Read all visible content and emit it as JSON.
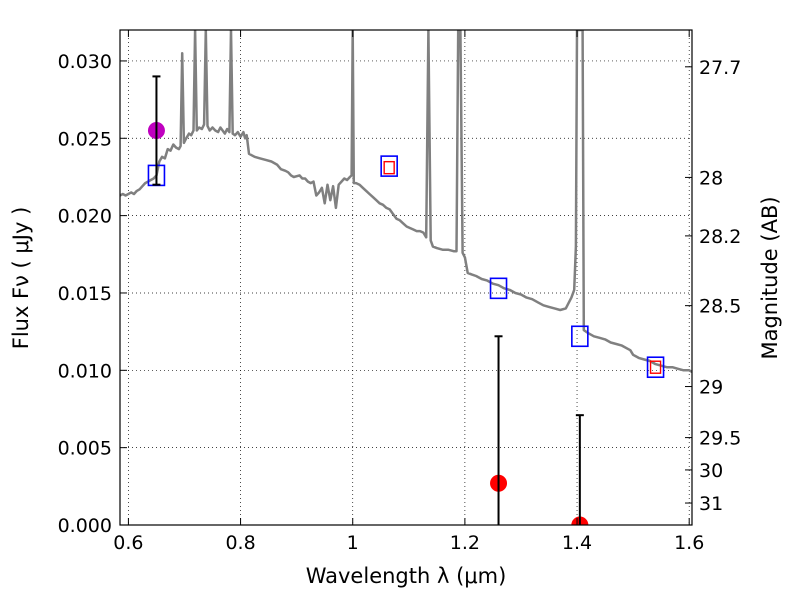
{
  "chart_data": {
    "type": "line",
    "x_unit_note": "",
    "xlabel": "Wavelength  λ (μm)",
    "ylabel": "Flux  Fν  ( μJy )",
    "y2label": "Magnitude (AB)",
    "xlim": [
      0.585,
      1.605
    ],
    "ylim": [
      0.0,
      0.032
    ],
    "x_ticks": [
      0.6,
      0.8,
      1.0,
      1.2,
      1.4,
      1.6
    ],
    "x_tick_labels": [
      "0.6",
      "0.8",
      "1",
      "1.2",
      "1.4",
      "1.6"
    ],
    "y_ticks": [
      0.0,
      0.005,
      0.01,
      0.015,
      0.02,
      0.025,
      0.03
    ],
    "y_tick_labels": [
      "0.000",
      "0.005",
      "0.010",
      "0.015",
      "0.020",
      "0.025",
      "0.030"
    ],
    "y2_ticks": [
      {
        "label": "27.7",
        "flux": 0.02962
      },
      {
        "label": "28",
        "flux": 0.02247
      },
      {
        "label": "28.2",
        "flux": 0.01869
      },
      {
        "label": "28.5",
        "flux": 0.01418
      },
      {
        "label": "29",
        "flux": 0.00895
      },
      {
        "label": "29.5",
        "flux": 0.00565
      },
      {
        "label": "30",
        "flux": 0.00356
      },
      {
        "label": "31",
        "flux": 0.00142
      }
    ],
    "grid": true,
    "series": [
      {
        "kind": "model_spectrum",
        "color": "#808080",
        "points": [
          [
            0.585,
            0.0213
          ],
          [
            0.59,
            0.0214
          ],
          [
            0.595,
            0.0213
          ],
          [
            0.6,
            0.0214
          ],
          [
            0.605,
            0.0215
          ],
          [
            0.61,
            0.0214
          ],
          [
            0.615,
            0.0216
          ],
          [
            0.62,
            0.0217
          ],
          [
            0.625,
            0.0219
          ],
          [
            0.63,
            0.0221
          ],
          [
            0.635,
            0.0222
          ],
          [
            0.64,
            0.0223
          ],
          [
            0.645,
            0.0224
          ],
          [
            0.65,
            0.0226
          ],
          [
            0.655,
            0.0235
          ],
          [
            0.66,
            0.0238
          ],
          [
            0.665,
            0.0237
          ],
          [
            0.67,
            0.0243
          ],
          [
            0.675,
            0.0242
          ],
          [
            0.68,
            0.0246
          ],
          [
            0.685,
            0.0244
          ],
          [
            0.69,
            0.0243
          ],
          [
            0.693,
            0.0245
          ],
          [
            0.696,
            0.0305
          ],
          [
            0.699,
            0.0247
          ],
          [
            0.703,
            0.025
          ],
          [
            0.708,
            0.0253
          ],
          [
            0.712,
            0.0252
          ],
          [
            0.716,
            0.0255
          ],
          [
            0.719,
            0.032
          ],
          [
            0.722,
            0.0255
          ],
          [
            0.726,
            0.0257
          ],
          [
            0.731,
            0.0256
          ],
          [
            0.735,
            0.0259
          ],
          [
            0.738,
            0.032
          ],
          [
            0.741,
            0.0258
          ],
          [
            0.745,
            0.0255
          ],
          [
            0.75,
            0.0257
          ],
          [
            0.755,
            0.0255
          ],
          [
            0.76,
            0.0254
          ],
          [
            0.764,
            0.0257
          ],
          [
            0.768,
            0.0255
          ],
          [
            0.772,
            0.0253
          ],
          [
            0.776,
            0.0256
          ],
          [
            0.78,
            0.0254
          ],
          [
            0.783,
            0.032
          ],
          [
            0.786,
            0.0253
          ],
          [
            0.79,
            0.0252
          ],
          [
            0.795,
            0.0254
          ],
          [
            0.8,
            0.0251
          ],
          [
            0.805,
            0.0254
          ],
          [
            0.808,
            0.025
          ],
          [
            0.811,
            0.0252
          ],
          [
            0.815,
            0.024
          ],
          [
            0.825,
            0.0238
          ],
          [
            0.835,
            0.0237
          ],
          [
            0.845,
            0.0236
          ],
          [
            0.855,
            0.0235
          ],
          [
            0.865,
            0.0233
          ],
          [
            0.872,
            0.023
          ],
          [
            0.88,
            0.0229
          ],
          [
            0.885,
            0.0228
          ],
          [
            0.89,
            0.0226
          ],
          [
            0.895,
            0.0225
          ],
          [
            0.905,
            0.0226
          ],
          [
            0.91,
            0.0224
          ],
          [
            0.915,
            0.0224
          ],
          [
            0.92,
            0.0222
          ],
          [
            0.925,
            0.0221
          ],
          [
            0.93,
            0.0222
          ],
          [
            0.935,
            0.0213
          ],
          [
            0.94,
            0.0215
          ],
          [
            0.945,
            0.0218
          ],
          [
            0.95,
            0.0208
          ],
          [
            0.955,
            0.022
          ],
          [
            0.96,
            0.021
          ],
          [
            0.965,
            0.0219
          ],
          [
            0.97,
            0.0205
          ],
          [
            0.975,
            0.022
          ],
          [
            0.98,
            0.0222
          ],
          [
            0.985,
            0.0224
          ],
          [
            0.99,
            0.0223
          ],
          [
            0.995,
            0.0225
          ],
          [
            0.998,
            0.0226
          ],
          [
            1.0,
            0.032
          ],
          [
            1.002,
            0.0221
          ],
          [
            1.006,
            0.0221
          ],
          [
            1.012,
            0.022
          ],
          [
            1.018,
            0.0218
          ],
          [
            1.024,
            0.0216
          ],
          [
            1.03,
            0.0214
          ],
          [
            1.036,
            0.0212
          ],
          [
            1.042,
            0.021
          ],
          [
            1.048,
            0.0208
          ],
          [
            1.054,
            0.0207
          ],
          [
            1.06,
            0.0205
          ],
          [
            1.066,
            0.0204
          ],
          [
            1.072,
            0.0201
          ],
          [
            1.078,
            0.0198
          ],
          [
            1.084,
            0.0197
          ],
          [
            1.09,
            0.0195
          ],
          [
            1.096,
            0.0193
          ],
          [
            1.102,
            0.0192
          ],
          [
            1.108,
            0.0191
          ],
          [
            1.114,
            0.019
          ],
          [
            1.12,
            0.019
          ],
          [
            1.126,
            0.0189
          ],
          [
            1.131,
            0.0186
          ],
          [
            1.135,
            0.032
          ],
          [
            1.139,
            0.0184
          ],
          [
            1.143,
            0.018
          ],
          [
            1.15,
            0.0179
          ],
          [
            1.16,
            0.0178
          ],
          [
            1.17,
            0.0178
          ],
          [
            1.18,
            0.0177
          ],
          [
            1.185,
            0.0177
          ],
          [
            1.188,
            0.032
          ],
          [
            1.192,
            0.032
          ],
          [
            1.196,
            0.0176
          ],
          [
            1.2,
            0.0173
          ],
          [
            1.205,
            0.0163
          ],
          [
            1.212,
            0.0162
          ],
          [
            1.22,
            0.0161
          ],
          [
            1.23,
            0.0159
          ],
          [
            1.24,
            0.0158
          ],
          [
            1.25,
            0.0156
          ],
          [
            1.26,
            0.0155
          ],
          [
            1.27,
            0.0153
          ],
          [
            1.28,
            0.0152
          ],
          [
            1.29,
            0.015
          ],
          [
            1.3,
            0.0149
          ],
          [
            1.31,
            0.0147
          ],
          [
            1.32,
            0.0146
          ],
          [
            1.33,
            0.0144
          ],
          [
            1.34,
            0.0142
          ],
          [
            1.35,
            0.0141
          ],
          [
            1.36,
            0.014
          ],
          [
            1.37,
            0.0139
          ],
          [
            1.38,
            0.014
          ],
          [
            1.39,
            0.0147
          ],
          [
            1.395,
            0.0152
          ],
          [
            1.398,
            0.018
          ],
          [
            1.4,
            0.032
          ],
          [
            1.41,
            0.032
          ],
          [
            1.412,
            0.0126
          ],
          [
            1.42,
            0.0124
          ],
          [
            1.43,
            0.0122
          ],
          [
            1.44,
            0.0121
          ],
          [
            1.45,
            0.012
          ],
          [
            1.46,
            0.0118
          ],
          [
            1.47,
            0.0117
          ],
          [
            1.48,
            0.0116
          ],
          [
            1.49,
            0.0114
          ],
          [
            1.495,
            0.0113
          ],
          [
            1.5,
            0.011
          ],
          [
            1.51,
            0.0108
          ],
          [
            1.52,
            0.0107
          ],
          [
            1.53,
            0.0106
          ],
          [
            1.54,
            0.0104
          ],
          [
            1.55,
            0.0103
          ],
          [
            1.56,
            0.0102
          ],
          [
            1.57,
            0.0102
          ],
          [
            1.58,
            0.0101
          ],
          [
            1.59,
            0.01
          ],
          [
            1.6,
            0.01
          ],
          [
            1.605,
            0.0099
          ]
        ]
      },
      {
        "kind": "model_photometry_blue_squares",
        "color": "#0000ff",
        "points": [
          [
            0.65,
            0.0226
          ],
          [
            1.065,
            0.0232
          ],
          [
            1.26,
            0.0153
          ],
          [
            1.405,
            0.0122
          ],
          [
            1.54,
            0.0102
          ]
        ]
      },
      {
        "kind": "synthetic_photometry_red_squares",
        "color": "#ff0000",
        "points": [
          [
            1.065,
            0.0231
          ],
          [
            1.54,
            0.0102
          ]
        ]
      },
      {
        "kind": "observed_points",
        "points": [
          {
            "x": 0.65,
            "y": 0.0255,
            "err_low": 0.022,
            "err_high": 0.029,
            "color": "#bf00bf"
          },
          {
            "x": 1.26,
            "y": 0.0027,
            "err_low": 0.0,
            "err_high": 0.0122,
            "color": "#ff0000"
          },
          {
            "x": 1.405,
            "y": 0.0,
            "err_low": 0.0,
            "err_high": 0.0071,
            "color": "#ff0000"
          }
        ]
      }
    ]
  }
}
